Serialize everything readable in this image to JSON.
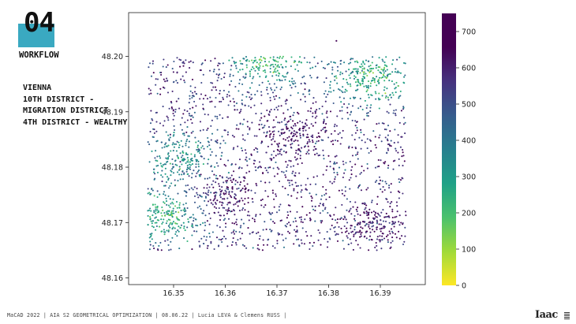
{
  "slide": {
    "section_number": "04",
    "section_label": "WORKFLOW",
    "description": [
      "VIENNA",
      "10TH DISTRICT -",
      "MIGRATION DISTRICT",
      "4TH DISTRICT - WEALTHY"
    ],
    "footer": "MaCAD 2022 | AIA S2 GEOMETRICAL OPTIMIZATION | 08.06.22 | Lucia LEVA & Clemens RUSS |",
    "logo_text": "Iaac",
    "accent_color": "#3aa9c1"
  },
  "chart_data": {
    "type": "scatter",
    "title": "",
    "xlabel": "",
    "ylabel": "",
    "xlim": [
      16.3413,
      16.3987
    ],
    "ylim": [
      48.1588,
      48.2079
    ],
    "xticks": [
      "16.35",
      "16.36",
      "16.37",
      "16.38",
      "16.39"
    ],
    "yticks": [
      "48.16",
      "48.17",
      "48.18",
      "48.19",
      "48.20"
    ],
    "colorbar": {
      "colormap": "viridis_r",
      "range": [
        0,
        750
      ],
      "ticks": [
        "0",
        "100",
        "200",
        "300",
        "400",
        "500",
        "600",
        "700"
      ]
    },
    "point_extent": {
      "x": [
        16.345,
        16.395
      ],
      "y": [
        48.165,
        48.2
      ]
    },
    "clusters": [
      {
        "x": 16.374,
        "y": 48.1857,
        "value": 740,
        "label": "dense high-value cluster"
      },
      {
        "x": 16.3485,
        "y": 48.1715,
        "value": 170,
        "label": "low-value cluster south-west"
      },
      {
        "x": 16.351,
        "y": 48.1815,
        "value": 280,
        "label": "mid-value cluster west"
      },
      {
        "x": 16.369,
        "y": 48.2,
        "value": 120,
        "label": "low-value cluster north"
      },
      {
        "x": 16.388,
        "y": 48.196,
        "value": 150,
        "label": "low-value cluster north-east"
      },
      {
        "x": 16.36,
        "y": 48.175,
        "value": 730,
        "label": "high-value cluster south"
      },
      {
        "x": 16.388,
        "y": 48.17,
        "value": 720,
        "label": "high-value cluster south-east"
      }
    ],
    "outlier": {
      "x": 16.3815,
      "y": 48.2028,
      "value": 740
    }
  }
}
